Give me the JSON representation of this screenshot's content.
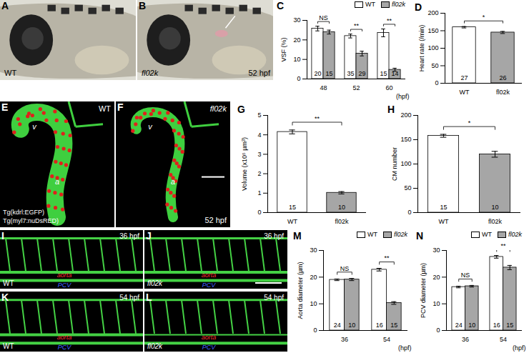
{
  "image_panels": [
    {
      "panel": "A",
      "kind": "brightfield",
      "genotype": "WT"
    },
    {
      "panel": "B",
      "kind": "brightfield",
      "genotype": "fl02k",
      "stage": "52 hpf"
    },
    {
      "panel": "E",
      "kind": "heart",
      "genotype": "WT",
      "transgenes": [
        "Tg(kdrl:EGFP)",
        "Tg(myl7:nuDsRED)"
      ],
      "chambers": [
        "v",
        "a"
      ]
    },
    {
      "panel": "F",
      "kind": "heart",
      "genotype": "fl02k",
      "stage": "52 hpf",
      "chambers": [
        "v",
        "a"
      ]
    },
    {
      "panel": "I",
      "kind": "trunk",
      "genotype": "WT",
      "stage": "36 hpf",
      "vessels": [
        "aorta",
        "PCV"
      ]
    },
    {
      "panel": "J",
      "kind": "trunk",
      "genotype": "fl02k",
      "stage": "36 hpf",
      "vessels": [
        "aorta",
        "PCV"
      ]
    },
    {
      "panel": "K",
      "kind": "trunk",
      "genotype": "WT",
      "stage": "54 hpf",
      "vessels": [
        "aorta",
        "PCV"
      ]
    },
    {
      "panel": "L",
      "kind": "trunk",
      "genotype": "fl02k",
      "stage": "54 hpf",
      "vessels": [
        "aorta",
        "PCV"
      ]
    }
  ],
  "chart_data": [
    {
      "panel": "C",
      "type": "bar",
      "y_label": "VSF (%)",
      "x_label": "(hpf)",
      "categories": [
        "48",
        "52",
        "60"
      ],
      "series": [
        {
          "name": "WT",
          "color": "#ffffff",
          "values": [
            25.8,
            22,
            23.6
          ],
          "errors": [
            1.2,
            1,
            2
          ],
          "n": [
            20,
            35,
            15
          ]
        },
        {
          "name": "fl02k",
          "color": "#a6a6a6",
          "values": [
            24,
            13,
            4.7
          ],
          "errors": [
            1,
            1.2,
            0.8
          ],
          "n": [
            15,
            29,
            14
          ]
        }
      ],
      "significance": [
        "NS",
        "**",
        "**"
      ],
      "ylim": [
        0,
        30
      ],
      "yticks": [
        0,
        10,
        20,
        30
      ],
      "legend": "top"
    },
    {
      "panel": "D",
      "type": "bar",
      "y_label": "Heart rate (/min)",
      "categories": [
        "WT",
        "fl02k"
      ],
      "values": [
        160,
        145
      ],
      "errors": [
        2,
        3
      ],
      "n": [
        27,
        26
      ],
      "colors": [
        "#ffffff",
        "#a6a6a6"
      ],
      "significance": [
        "*"
      ],
      "ylim": [
        0,
        200
      ],
      "yticks": [
        0,
        50,
        100,
        150,
        200
      ]
    },
    {
      "panel": "G",
      "type": "bar",
      "y_label": "Volume (x10⁵ µm³)",
      "categories": [
        "WT",
        "fl02k"
      ],
      "values": [
        4.15,
        1.02
      ],
      "errors": [
        0.1,
        0.06
      ],
      "n": [
        15,
        10
      ],
      "colors": [
        "#ffffff",
        "#a6a6a6"
      ],
      "significance": [
        "**"
      ],
      "ylim": [
        0,
        5
      ],
      "yticks": [
        0,
        1,
        2,
        3,
        4,
        5
      ]
    },
    {
      "panel": "H",
      "type": "bar",
      "y_label": "CM number",
      "categories": [
        "WT",
        "fl02k"
      ],
      "values": [
        158,
        120
      ],
      "errors": [
        3,
        6
      ],
      "n": [
        15,
        10
      ],
      "colors": [
        "#ffffff",
        "#a6a6a6"
      ],
      "significance": [
        "*"
      ],
      "ylim": [
        0,
        200
      ],
      "yticks": [
        0,
        50,
        100,
        150,
        200
      ]
    },
    {
      "panel": "M",
      "type": "bar",
      "y_label": "Aorta diameter (µm)",
      "x_label": "(hpf)",
      "categories": [
        "36",
        "54"
      ],
      "series": [
        {
          "name": "WT",
          "color": "#ffffff",
          "values": [
            19,
            22.8
          ],
          "errors": [
            0.3,
            0.5
          ],
          "n": [
            24,
            16
          ]
        },
        {
          "name": "fl02k",
          "color": "#a6a6a6",
          "values": [
            19.1,
            10.3
          ],
          "errors": [
            0.4,
            0.5
          ],
          "n": [
            10,
            15
          ]
        }
      ],
      "significance": [
        "NS",
        "**"
      ],
      "ylim": [
        0,
        30
      ],
      "yticks": [
        0,
        10,
        20,
        30
      ],
      "legend": "top"
    },
    {
      "panel": "N",
      "type": "bar",
      "y_label": "PCV diameter (µm)",
      "x_label": "(hpf)",
      "categories": [
        "36",
        "54"
      ],
      "series": [
        {
          "name": "WT",
          "color": "#ffffff",
          "values": [
            16.3,
            27.6
          ],
          "errors": [
            0.3,
            0.5
          ],
          "n": [
            24,
            16
          ]
        },
        {
          "name": "fl02k",
          "color": "#a6a6a6",
          "values": [
            16.6,
            23.6
          ],
          "errors": [
            0.3,
            0.8
          ],
          "n": [
            10,
            15
          ]
        }
      ],
      "significance": [
        "NS",
        "**"
      ],
      "ylim": [
        0,
        30
      ],
      "yticks": [
        0,
        10,
        20,
        30
      ],
      "legend": "top"
    }
  ]
}
